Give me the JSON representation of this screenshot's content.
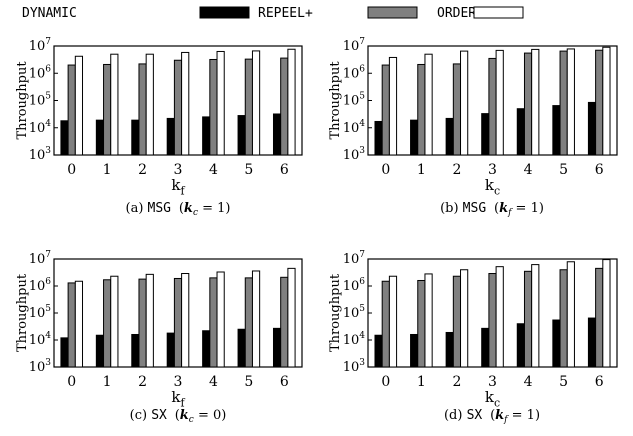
{
  "legend": [
    {
      "name": "DYNAMIC",
      "color": "#000000"
    },
    {
      "name": "REPEEL+",
      "color": "#808080"
    },
    {
      "name": "ORDER",
      "color": "#ffffff"
    }
  ],
  "chart_data": [
    {
      "type": "bar",
      "ylabel": "Throughput",
      "xlabel": "k_f",
      "ylim": [
        1000,
        10000000
      ],
      "yscale": "log",
      "categories": [
        "0",
        "1",
        "2",
        "3",
        "4",
        "5",
        "6"
      ],
      "series": [
        {
          "name": "DYNAMIC",
          "values": [
            18000,
            19000,
            19000,
            22000,
            25000,
            28000,
            32000
          ]
        },
        {
          "name": "REPEEL+",
          "values": [
            2000000,
            2100000,
            2200000,
            3000000,
            3200000,
            3300000,
            3600000
          ]
        },
        {
          "name": "ORDER",
          "values": [
            4200000,
            5000000,
            5000000,
            5800000,
            6300000,
            6600000,
            7600000
          ]
        }
      ],
      "caption": {
        "prefix": "(a)",
        "dataset": "MSG",
        "cond": "(k_c = 1)"
      }
    },
    {
      "type": "bar",
      "ylabel": "Throughput",
      "xlabel": "k_c",
      "ylim": [
        1000,
        10000000
      ],
      "yscale": "log",
      "categories": [
        "0",
        "1",
        "2",
        "3",
        "4",
        "5",
        "6"
      ],
      "series": [
        {
          "name": "DYNAMIC",
          "values": [
            17000,
            19000,
            22000,
            33000,
            50000,
            65000,
            85000
          ]
        },
        {
          "name": "REPEEL+",
          "values": [
            2000000,
            2100000,
            2200000,
            3500000,
            5500000,
            6500000,
            7000000
          ]
        },
        {
          "name": "ORDER",
          "values": [
            3800000,
            5000000,
            6500000,
            6900000,
            7500000,
            7800000,
            9000000
          ]
        }
      ],
      "caption": {
        "prefix": "(b)",
        "dataset": "MSG",
        "cond": "(k_f = 1)"
      }
    },
    {
      "type": "bar",
      "ylabel": "Throughput",
      "xlabel": "k_f",
      "ylim": [
        1000,
        10000000
      ],
      "yscale": "log",
      "categories": [
        "0",
        "1",
        "2",
        "3",
        "4",
        "5",
        "6"
      ],
      "series": [
        {
          "name": "DYNAMIC",
          "values": [
            12000,
            15000,
            16000,
            18000,
            22000,
            25000,
            27000
          ]
        },
        {
          "name": "REPEEL+",
          "values": [
            1300000,
            1700000,
            1800000,
            1900000,
            2000000,
            2000000,
            2100000
          ]
        },
        {
          "name": "ORDER",
          "values": [
            1500000,
            2300000,
            2700000,
            2900000,
            3300000,
            3600000,
            4500000
          ]
        }
      ],
      "caption": {
        "prefix": "(c)",
        "dataset": "SX",
        "cond": "(k_c = 0)"
      }
    },
    {
      "type": "bar",
      "ylabel": "Throughput",
      "xlabel": "k_c",
      "ylim": [
        1000,
        10000000
      ],
      "yscale": "log",
      "categories": [
        "0",
        "1",
        "2",
        "3",
        "4",
        "5",
        "6"
      ],
      "series": [
        {
          "name": "DYNAMIC",
          "values": [
            15000,
            16000,
            19000,
            27000,
            40000,
            55000,
            65000
          ]
        },
        {
          "name": "REPEEL+",
          "values": [
            1500000,
            1600000,
            2300000,
            2900000,
            3500000,
            4000000,
            4500000
          ]
        },
        {
          "name": "ORDER",
          "values": [
            2300000,
            2800000,
            4000000,
            5200000,
            6200000,
            7900000,
            9500000
          ]
        }
      ],
      "caption": {
        "prefix": "(d)",
        "dataset": "SX",
        "cond": "(k_f = 1)"
      }
    }
  ]
}
